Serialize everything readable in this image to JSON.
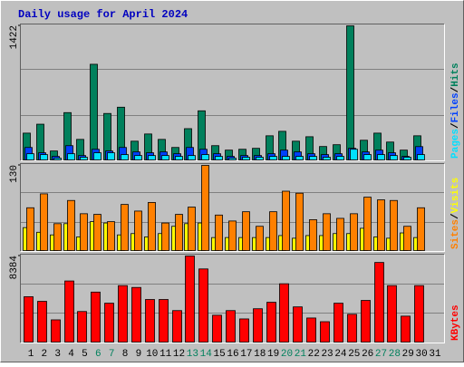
{
  "title": "Daily usage for April 2024",
  "legend_separator": "/",
  "chart_data": [
    {
      "type": "bar",
      "ylim": [
        0,
        1422
      ],
      "yticks": [
        1422
      ],
      "series": [
        {
          "name": "Pages",
          "color": "#00E0FF",
          "values": [
            75,
            66,
            28,
            75,
            38,
            85,
            85,
            66,
            56,
            56,
            56,
            47,
            56,
            66,
            47,
            28,
            38,
            38,
            47,
            47,
            47,
            47,
            38,
            47,
            122,
            66,
            66,
            56,
            38,
            66,
            null
          ]
        },
        {
          "name": "Files",
          "color": "#0040FF",
          "values": [
            141,
            85,
            47,
            160,
            56,
            122,
            104,
            141,
            94,
            85,
            94,
            75,
            141,
            122,
            75,
            47,
            56,
            56,
            75,
            113,
            94,
            75,
            66,
            75,
            132,
            94,
            113,
            85,
            47,
            150,
            null
          ]
        },
        {
          "name": "Hits",
          "color": "#00805C",
          "values": [
            292,
            386,
            104,
            508,
            226,
            1017,
            499,
            565,
            207,
            283,
            226,
            141,
            339,
            527,
            160,
            113,
            122,
            132,
            264,
            311,
            207,
            254,
            151,
            170,
            1422,
            217,
            292,
            198,
            113,
            264,
            null
          ]
        }
      ]
    },
    {
      "type": "bar",
      "ylim": [
        0,
        130
      ],
      "yticks": [
        130
      ],
      "series": [
        {
          "name": "Sites",
          "color": "#FF8000",
          "values": [
            66,
            87,
            42,
            77,
            57,
            56,
            45,
            71,
            61,
            74,
            43,
            56,
            67,
            130,
            55,
            46,
            60,
            38,
            60,
            91,
            88,
            48,
            57,
            50,
            57,
            82,
            78,
            77,
            38,
            66,
            null
          ]
        },
        {
          "name": "Visits",
          "color": "#FFFF00",
          "values": [
            36,
            29,
            25,
            42,
            22,
            45,
            43,
            25,
            27,
            22,
            27,
            38,
            42,
            43,
            21,
            21,
            21,
            21,
            21,
            24,
            20,
            24,
            24,
            27,
            27,
            35,
            22,
            20,
            28,
            21,
            null
          ]
        }
      ]
    },
    {
      "type": "bar",
      "ylim": [
        0,
        8384
      ],
      "yticks": [
        8384
      ],
      "categories": [
        "1",
        "2",
        "3",
        "4",
        "5",
        "6",
        "7",
        "8",
        "9",
        "10",
        "11",
        "12",
        "13",
        "14",
        "15",
        "16",
        "17",
        "18",
        "19",
        "20",
        "21",
        "22",
        "23",
        "24",
        "25",
        "26",
        "27",
        "28",
        "29",
        "30",
        "31"
      ],
      "category_colors": [
        "#000000",
        "#000000",
        "#000000",
        "#000000",
        "#000000",
        "#00805C",
        "#00805C",
        "#000000",
        "#000000",
        "#000000",
        "#000000",
        "#000000",
        "#00805C",
        "#00805C",
        "#000000",
        "#000000",
        "#000000",
        "#000000",
        "#000000",
        "#00805C",
        "#00805C",
        "#000000",
        "#000000",
        "#000000",
        "#000000",
        "#000000",
        "#00805C",
        "#00805C",
        "#000000",
        "#000000",
        "#000000"
      ],
      "series": [
        {
          "name": "KBytes",
          "color": "#FF0000",
          "values": [
            4460,
            4014,
            2230,
            5976,
            3033,
            4906,
            3836,
            5530,
            5352,
            4192,
            4192,
            3122,
            8384,
            7136,
            2676,
            3122,
            2319,
            3300,
            3925,
            5709,
            3479,
            2408,
            2052,
            3836,
            2765,
            4103,
            7761,
            5530,
            2587,
            5530,
            null
          ]
        }
      ]
    }
  ]
}
